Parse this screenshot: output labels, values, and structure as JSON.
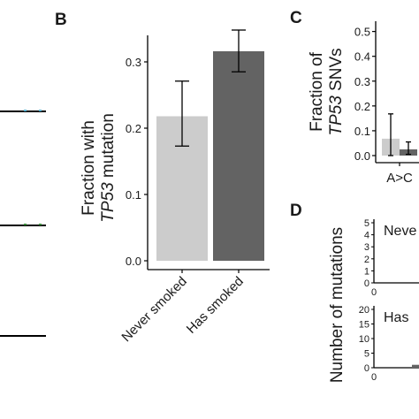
{
  "panels": {
    "B": "B",
    "C": "C",
    "D": "D"
  },
  "chart_data": [
    {
      "panel": "B",
      "type": "bar",
      "categories": [
        "Never smoked",
        "Has smoked"
      ],
      "values": [
        0.218,
        0.316
      ],
      "error_low": [
        0.173,
        0.285
      ],
      "error_high": [
        0.271,
        0.348
      ],
      "colors": [
        "#cccccc",
        "#636363"
      ],
      "ylabel_line1": "Fraction with",
      "ylabel_line2_italic": "TP53",
      "ylabel_line2_rest": " mutation",
      "yticks": [
        "0.0",
        "0.1",
        "0.2",
        "0.3"
      ],
      "ytick_values": [
        0.0,
        0.1,
        0.2,
        0.3
      ],
      "ylim": [
        0,
        0.34
      ],
      "grid": false
    },
    {
      "panel": "C",
      "type": "bar",
      "categories": [
        "A>C"
      ],
      "series": [
        {
          "values": [
            0.068
          ],
          "error_low": [
            0.0
          ],
          "error_high": [
            0.168
          ],
          "color": "#cccccc"
        },
        {
          "values": [
            0.025
          ],
          "error_low": [
            0.005
          ],
          "error_high": [
            0.055
          ],
          "color": "#636363"
        }
      ],
      "ylabel_line1": "Fraction of",
      "ylabel_line2_italic": "TP53",
      "ylabel_line2_rest": " SNVs",
      "yticks": [
        "0.0",
        "0.1",
        "0.2",
        "0.3",
        "0.4",
        "0.5"
      ],
      "ytick_values": [
        0.0,
        0.1,
        0.2,
        0.3,
        0.4,
        0.5
      ],
      "ylim": [
        0,
        0.52
      ]
    },
    {
      "panel": "D",
      "type": "bar",
      "ylabel": "Number of mutations",
      "subplots": [
        {
          "title": "Neve",
          "yticks": [
            "0",
            "1",
            "2",
            "3",
            "4",
            "5"
          ],
          "ytick_values": [
            0,
            1,
            2,
            3,
            4,
            5
          ],
          "ylim": [
            0,
            5
          ],
          "xtick": "0"
        },
        {
          "title": "Has",
          "yticks": [
            "0",
            "5",
            "10",
            "15",
            "20"
          ],
          "ytick_values": [
            0,
            5,
            10,
            15,
            20
          ],
          "ylim": [
            0,
            20
          ],
          "xtick": "0",
          "values": [
            1
          ]
        }
      ]
    }
  ]
}
